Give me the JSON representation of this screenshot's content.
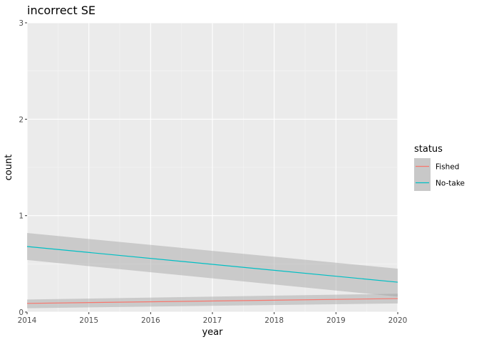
{
  "chart_data": {
    "type": "line",
    "title": "incorrect SE",
    "xlabel": "year",
    "ylabel": "count",
    "xlim": [
      2014,
      2020
    ],
    "ylim": [
      0,
      3
    ],
    "x_ticks": [
      "2014",
      "2015",
      "2016",
      "2017",
      "2018",
      "2019",
      "2020"
    ],
    "y_ticks": [
      "0",
      "1",
      "2",
      "3"
    ],
    "grid": true,
    "legend": {
      "title": "status",
      "position": "right"
    },
    "series": [
      {
        "name": "Fished",
        "color": "#F8766D",
        "x": [
          2014,
          2020
        ],
        "y": [
          0.09,
          0.14
        ],
        "ci_lower": [
          0.04,
          0.09
        ],
        "ci_upper": [
          0.13,
          0.19
        ]
      },
      {
        "name": "No-take",
        "color": "#00BFC4",
        "x": [
          2014,
          2020
        ],
        "y": [
          0.68,
          0.31
        ],
        "ci_lower": [
          0.54,
          0.16
        ],
        "ci_upper": [
          0.82,
          0.45
        ]
      }
    ]
  }
}
